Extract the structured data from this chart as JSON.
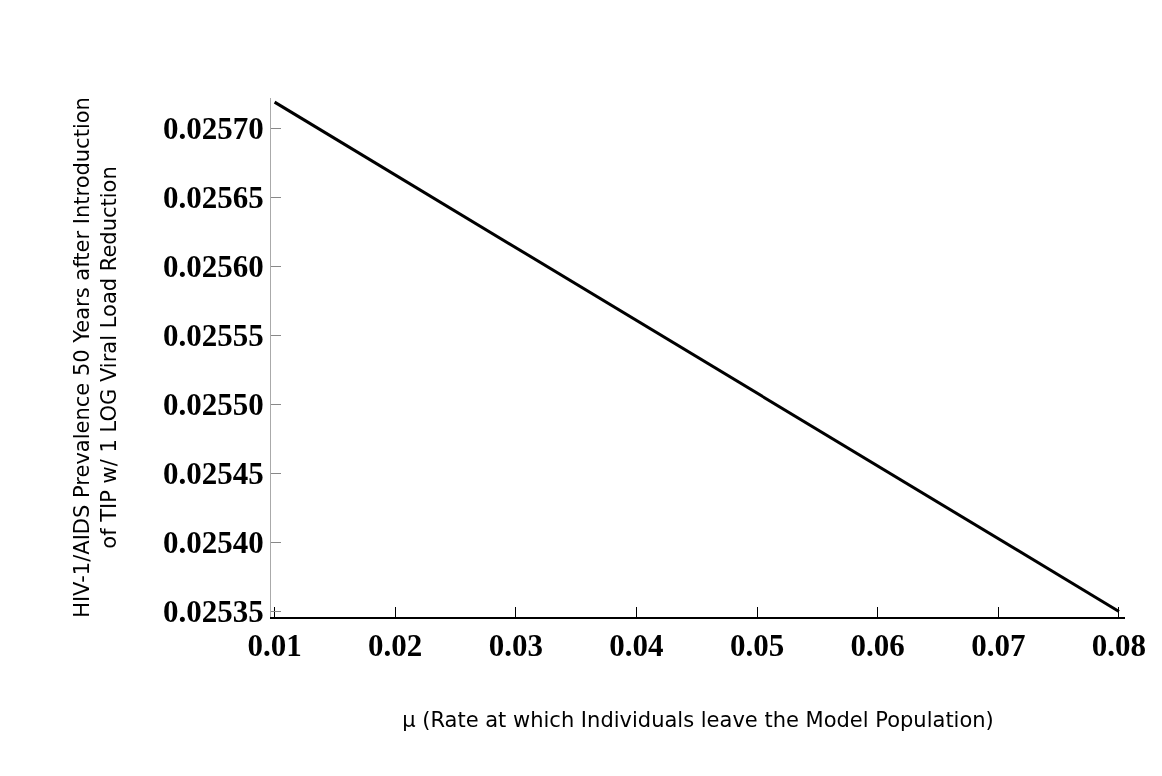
{
  "chart_data": {
    "type": "line",
    "xlabel": "µ (Rate at which Individuals leave the Model Population)",
    "ylabel": "HIV-1/AIDS Prevalence 50 Years after Introduction\nof TIP w/ 1 LOG Viral Load Reduction",
    "x": [
      0.01,
      0.08
    ],
    "series": [
      {
        "color": "#000000",
        "values": [
          0.025719,
          0.02535
        ]
      }
    ],
    "xlim": [
      0.0097,
      0.0805
    ],
    "xticks": [
      {
        "value": 0.01,
        "label": "0.01"
      },
      {
        "value": 0.02,
        "label": "0.02"
      },
      {
        "value": 0.03,
        "label": "0.03"
      },
      {
        "value": 0.04,
        "label": "0.04"
      },
      {
        "value": 0.05,
        "label": "0.05"
      },
      {
        "value": 0.06,
        "label": "0.06"
      },
      {
        "value": 0.07,
        "label": "0.07"
      },
      {
        "value": 0.08,
        "label": "0.08"
      }
    ],
    "ylim": [
      0.025346,
      0.025722
    ],
    "yticks": [
      {
        "value": 0.02535,
        "label": "0.02535"
      },
      {
        "value": 0.0254,
        "label": "0.02540"
      },
      {
        "value": 0.02545,
        "label": "0.02545"
      },
      {
        "value": 0.0255,
        "label": "0.02550"
      },
      {
        "value": 0.02555,
        "label": "0.02555"
      },
      {
        "value": 0.0256,
        "label": "0.02560"
      },
      {
        "value": 0.02565,
        "label": "0.02565"
      },
      {
        "value": 0.0257,
        "label": "0.02570"
      }
    ],
    "marker": "none",
    "line_style": "solid"
  }
}
